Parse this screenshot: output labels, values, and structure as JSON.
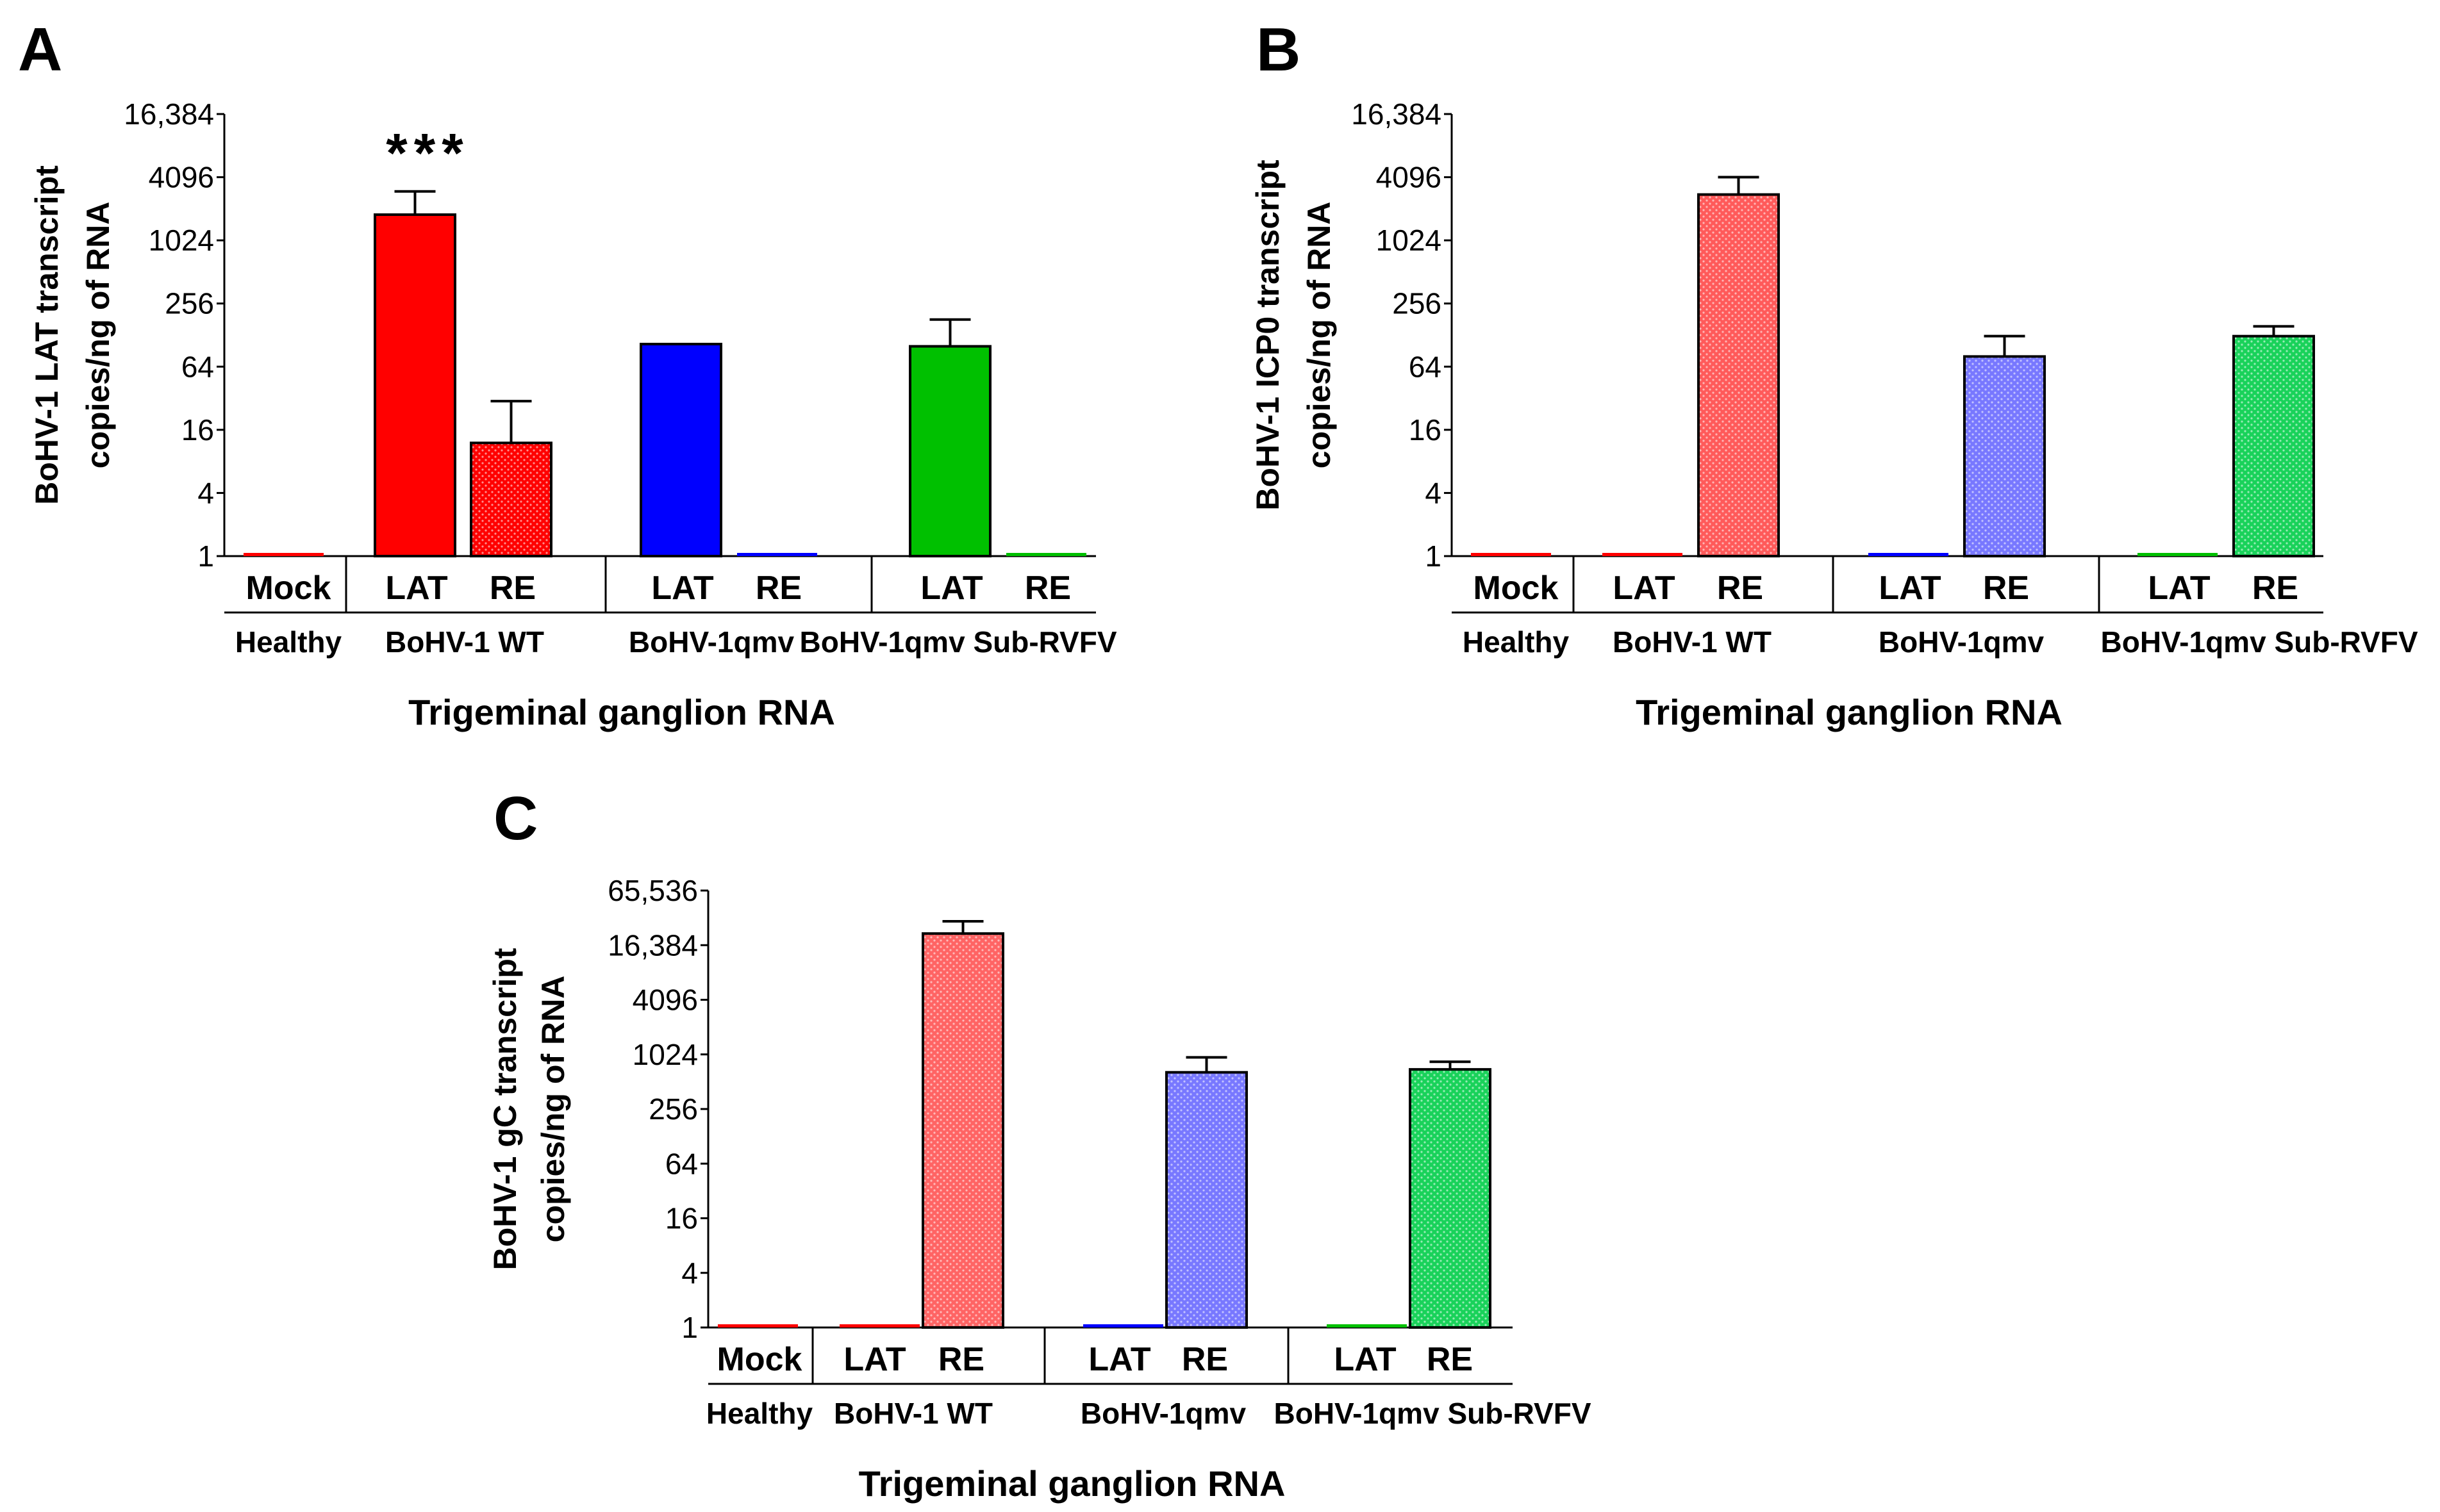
{
  "chart_data": [
    {
      "panel": "A",
      "type": "bar",
      "yscale": "log2",
      "ylim": [
        1,
        16384
      ],
      "yticks": [
        "1",
        "4",
        "16",
        "64",
        "256",
        "1024",
        "4096",
        "16,384"
      ],
      "ylabel_line1": "BoHV-1 LAT transcript",
      "ylabel_line2": "copies/ng of RNA",
      "xlabel": "Trigeminal ganglion RNA",
      "significance": "***",
      "groups": [
        "Healthy",
        "BoHV-1 WT",
        "BoHV-1qmv",
        "BoHV-1qmv Sub-RVFV"
      ],
      "bars": [
        {
          "group": 0,
          "label": "Mock",
          "value": 1,
          "error": 0,
          "color": "#ff0000",
          "pattern": "none"
        },
        {
          "group": 1,
          "label": "LAT",
          "value": 1800,
          "error": 1200,
          "color": "#ff0000",
          "pattern": "none"
        },
        {
          "group": 1,
          "label": "RE",
          "value": 12,
          "error": 18,
          "color": "#ff0000",
          "pattern": "dots"
        },
        {
          "group": 2,
          "label": "LAT",
          "value": 105,
          "error": 0,
          "color": "#0000ff",
          "pattern": "none"
        },
        {
          "group": 2,
          "label": "RE",
          "value": 1,
          "error": 0,
          "color": "#0000ff",
          "pattern": "none"
        },
        {
          "group": 3,
          "label": "LAT",
          "value": 100,
          "error": 80,
          "color": "#00c000",
          "pattern": "none"
        },
        {
          "group": 3,
          "label": "RE",
          "value": 1,
          "error": 0,
          "color": "#00c000",
          "pattern": "none"
        }
      ]
    },
    {
      "panel": "B",
      "type": "bar",
      "yscale": "log2",
      "ylim": [
        1,
        16384
      ],
      "yticks": [
        "1",
        "4",
        "16",
        "64",
        "256",
        "1024",
        "4096",
        "16,384"
      ],
      "ylabel_line1": "BoHV-1 ICP0 transcript",
      "ylabel_line2": "copies/ng of RNA",
      "xlabel": "Trigeminal ganglion RNA",
      "groups": [
        "Healthy",
        "BoHV-1 WT",
        "BoHV-1qmv",
        "BoHV-1qmv Sub-RVFV"
      ],
      "bars": [
        {
          "group": 0,
          "label": "Mock",
          "value": 1,
          "error": 0,
          "color": "#ff0000",
          "pattern": "none"
        },
        {
          "group": 1,
          "label": "LAT",
          "value": 1,
          "error": 0,
          "color": "#ff0000",
          "pattern": "none"
        },
        {
          "group": 1,
          "label": "RE",
          "value": 2800,
          "error": 1300,
          "color": "#ff5a5a",
          "pattern": "dots"
        },
        {
          "group": 2,
          "label": "LAT",
          "value": 1,
          "error": 0,
          "color": "#0000ff",
          "pattern": "none"
        },
        {
          "group": 2,
          "label": "RE",
          "value": 80,
          "error": 45,
          "color": "#7878ff",
          "pattern": "dots"
        },
        {
          "group": 3,
          "label": "LAT",
          "value": 1,
          "error": 0,
          "color": "#00c000",
          "pattern": "none"
        },
        {
          "group": 3,
          "label": "RE",
          "value": 125,
          "error": 30,
          "color": "#19d25a",
          "pattern": "dots"
        }
      ]
    },
    {
      "panel": "C",
      "type": "bar",
      "yscale": "log2",
      "ylim": [
        1,
        65536
      ],
      "yticks": [
        "1",
        "4",
        "16",
        "64",
        "256",
        "1024",
        "4096",
        "16,384",
        "65,536"
      ],
      "ylabel_line1": "BoHV-1 gC transcript",
      "ylabel_line2": "copies/ng of RNA",
      "xlabel": "Trigeminal ganglion RNA",
      "groups": [
        "Healthy",
        "BoHV-1 WT",
        "BoHV-1qmv",
        "BoHV-1qmv Sub-RVFV"
      ],
      "bars": [
        {
          "group": 0,
          "label": "Mock",
          "value": 1,
          "error": 0,
          "color": "#ff0000",
          "pattern": "none"
        },
        {
          "group": 1,
          "label": "LAT",
          "value": 1,
          "error": 0,
          "color": "#ff0000",
          "pattern": "none"
        },
        {
          "group": 1,
          "label": "RE",
          "value": 22000,
          "error": 8000,
          "color": "#ff6464",
          "pattern": "dots"
        },
        {
          "group": 2,
          "label": "LAT",
          "value": 1,
          "error": 0,
          "color": "#0000ff",
          "pattern": "none"
        },
        {
          "group": 2,
          "label": "RE",
          "value": 650,
          "error": 300,
          "color": "#7878ff",
          "pattern": "dots"
        },
        {
          "group": 3,
          "label": "LAT",
          "value": 1,
          "error": 0,
          "color": "#00c000",
          "pattern": "none"
        },
        {
          "group": 3,
          "label": "RE",
          "value": 700,
          "error": 150,
          "color": "#19d25a",
          "pattern": "dots"
        }
      ]
    }
  ]
}
